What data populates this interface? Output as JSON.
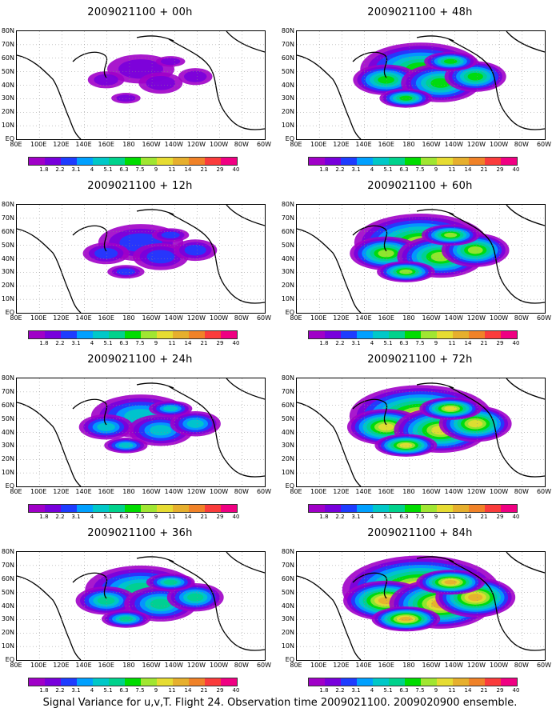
{
  "figure": {
    "caption": "Signal Variance for u,v,T. Flight 24. Observation time 2009021100. 2009020900 ensemble."
  },
  "panels": [
    {
      "title": "2009021100 + 00h",
      "level": 0.15
    },
    {
      "title": "2009021100 + 48h",
      "level": 0.6
    },
    {
      "title": "2009021100 + 12h",
      "level": 0.3
    },
    {
      "title": "2009021100 + 60h",
      "level": 0.7
    },
    {
      "title": "2009021100 + 24h",
      "level": 0.42
    },
    {
      "title": "2009021100 + 72h",
      "level": 0.78
    },
    {
      "title": "2009021100 + 36h",
      "level": 0.52
    },
    {
      "title": "2009021100 + 84h",
      "level": 0.9
    }
  ],
  "axes": {
    "lat_labels": [
      "80N",
      "70N",
      "60N",
      "50N",
      "40N",
      "30N",
      "20N",
      "10N",
      "EQ"
    ],
    "lon_labels": [
      "80E",
      "100E",
      "120E",
      "140E",
      "160E",
      "180",
      "160W",
      "140W",
      "120W",
      "100W",
      "80W",
      "60W"
    ]
  },
  "colorbar": {
    "labels": [
      "1.8",
      "2.2",
      "3.1",
      "4",
      "5.1",
      "6.3",
      "7.5",
      "9",
      "11",
      "14",
      "21",
      "29",
      "40"
    ],
    "colors": [
      "#a000c8",
      "#7800dc",
      "#1e3cff",
      "#00a0ff",
      "#00c8c8",
      "#00d28c",
      "#00dc00",
      "#a0e632",
      "#e6dc32",
      "#e6af2d",
      "#f08228",
      "#fa3c3c",
      "#f00082"
    ]
  }
}
